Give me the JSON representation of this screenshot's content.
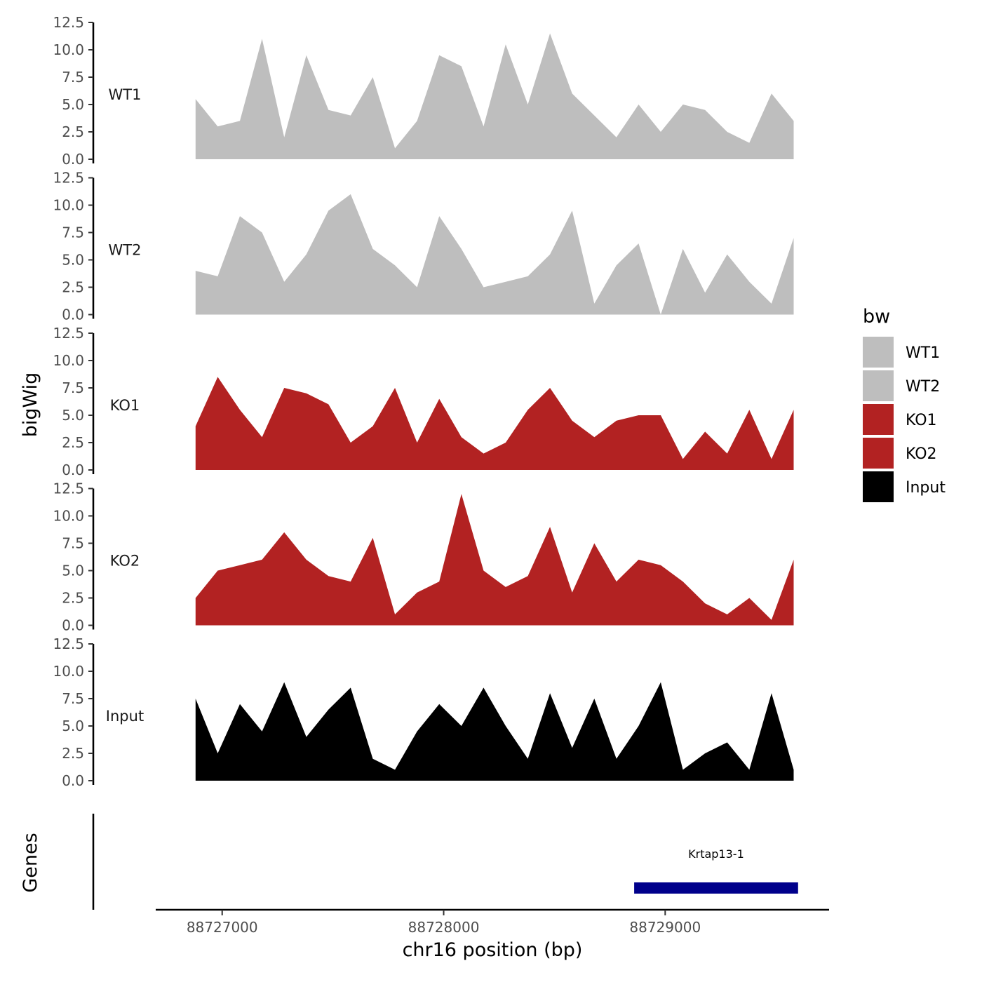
{
  "chart_data": {
    "type": "area",
    "title": "",
    "xlabel": "chr16 position (bp)",
    "ylabel": "bigWig",
    "genes_label": "Genes",
    "xlim": [
      88726700,
      88729740
    ],
    "ylim": [
      0,
      12.5
    ],
    "x_ticks": [
      88727000,
      88728000,
      88729000
    ],
    "x_tick_labels": [
      "88727000",
      "88728000",
      "88729000"
    ],
    "y_ticks": [
      0.0,
      2.5,
      5.0,
      7.5,
      10.0,
      12.5
    ],
    "y_tick_labels": [
      "0.0",
      "2.5",
      "5.0",
      "7.5",
      "10.0",
      "12.5"
    ],
    "x": [
      88726880,
      88726980,
      88727080,
      88727180,
      88727280,
      88727380,
      88727480,
      88727580,
      88727680,
      88727780,
      88727880,
      88727980,
      88728080,
      88728180,
      88728280,
      88728380,
      88728480,
      88728580,
      88728680,
      88728780,
      88728880,
      88728980,
      88729080,
      88729180,
      88729280,
      88729380,
      88729480,
      88729580
    ],
    "legend": {
      "title": "bw",
      "position": "right",
      "entries": [
        {
          "label": "WT1",
          "color": "#bebebe"
        },
        {
          "label": "WT2",
          "color": "#bebebe"
        },
        {
          "label": "KO1",
          "color": "#b22222"
        },
        {
          "label": "KO2",
          "color": "#b22222"
        },
        {
          "label": "Input",
          "color": "#000000"
        }
      ]
    },
    "series": [
      {
        "name": "WT1",
        "color": "#bebebe",
        "values": [
          5.5,
          3.0,
          3.5,
          11.0,
          2.0,
          9.5,
          4.5,
          4.0,
          7.5,
          1.0,
          3.5,
          9.5,
          8.5,
          3.0,
          10.5,
          5.0,
          11.5,
          6.0,
          4.0,
          2.0,
          5.0,
          2.5,
          5.0,
          4.5,
          2.5,
          1.5,
          6.0,
          3.5
        ]
      },
      {
        "name": "WT2",
        "color": "#bebebe",
        "values": [
          4.0,
          3.5,
          9.0,
          7.5,
          3.0,
          5.5,
          9.5,
          11.0,
          6.0,
          4.5,
          2.5,
          9.0,
          6.0,
          2.5,
          3.0,
          3.5,
          5.5,
          9.5,
          1.0,
          4.5,
          6.5,
          0.0,
          6.0,
          2.0,
          5.5,
          3.0,
          1.0,
          7.0
        ]
      },
      {
        "name": "KO1",
        "color": "#b22222",
        "values": [
          4.0,
          8.5,
          5.5,
          3.0,
          7.5,
          7.0,
          6.0,
          2.5,
          4.0,
          7.5,
          2.5,
          6.5,
          3.0,
          1.5,
          2.5,
          5.5,
          7.5,
          4.5,
          3.0,
          4.5,
          5.0,
          5.0,
          1.0,
          3.5,
          1.5,
          5.5,
          1.0,
          5.5
        ]
      },
      {
        "name": "KO2",
        "color": "#b22222",
        "values": [
          2.5,
          5.0,
          5.5,
          6.0,
          8.5,
          6.0,
          4.5,
          4.0,
          8.0,
          1.0,
          3.0,
          4.0,
          12.0,
          5.0,
          3.5,
          4.5,
          9.0,
          3.0,
          7.5,
          4.0,
          6.0,
          5.5,
          4.0,
          2.0,
          1.0,
          2.5,
          0.5,
          6.0
        ]
      },
      {
        "name": "Input",
        "color": "#000000",
        "values": [
          7.5,
          2.5,
          7.0,
          4.5,
          9.0,
          4.0,
          6.5,
          8.5,
          2.0,
          1.0,
          4.5,
          7.0,
          5.0,
          8.5,
          5.0,
          2.0,
          8.0,
          3.0,
          7.5,
          2.0,
          5.0,
          9.0,
          1.0,
          2.5,
          3.5,
          1.0,
          8.0,
          1.0
        ]
      }
    ],
    "genes": [
      {
        "name": "Krtap13-1",
        "start": 88728860,
        "end": 88729600,
        "color": "#00008b"
      }
    ]
  }
}
